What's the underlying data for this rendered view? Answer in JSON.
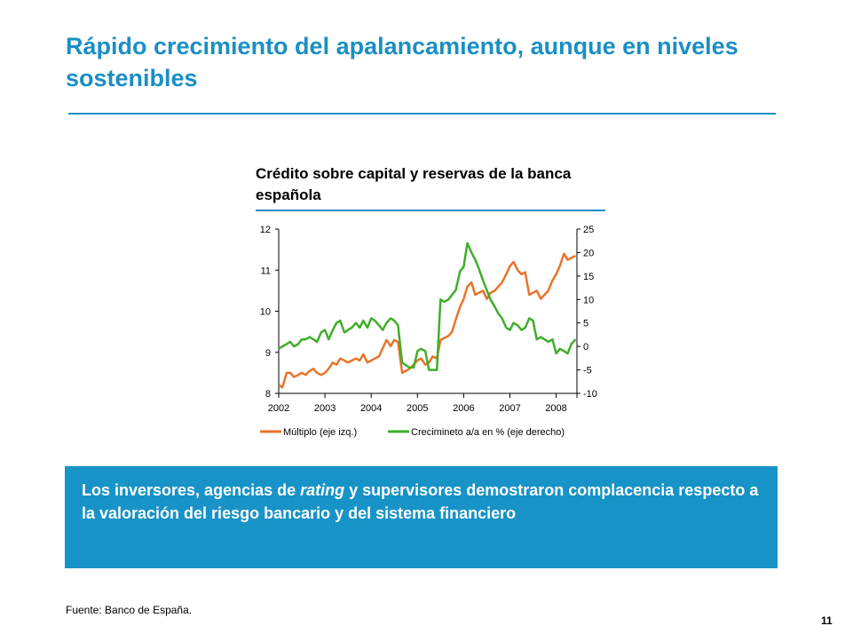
{
  "slide": {
    "title": "Rápido crecimiento del apalancamiento, aunque en niveles sostenibles",
    "callout": {
      "before": "Los inversores, agencias de ",
      "emphasis": "rating",
      "after": " y supervisores demostraron complacencia respecto a la valoración del riesgo bancario y del sistema financiero"
    },
    "source": "Fuente: Banco de España.",
    "page_number": "11"
  },
  "chart_data": {
    "type": "line",
    "title": "Crédito sobre capital y reservas de la banca española",
    "x_ticks": [
      "2002",
      "2003",
      "2004",
      "2005",
      "2006",
      "2007",
      "2008"
    ],
    "xlim": [
      2002,
      2008.45
    ],
    "y_left": {
      "ylim": [
        8,
        12
      ],
      "ticks": [
        "8",
        "9",
        "10",
        "11",
        "12"
      ]
    },
    "y_right": {
      "ylim": [
        -10,
        25
      ],
      "ticks": [
        "-10",
        "-5",
        "0",
        "5",
        "10",
        "15",
        "20",
        "25"
      ]
    },
    "grid": false,
    "legend_position": "bottom",
    "series": [
      {
        "name": "Múltiplo (eje izq.)",
        "axis": "left",
        "color": "#e8742a",
        "x": [
          2002.0,
          2002.08,
          2002.17,
          2002.25,
          2002.33,
          2002.42,
          2002.5,
          2002.58,
          2002.67,
          2002.75,
          2002.83,
          2002.92,
          2003.0,
          2003.08,
          2003.17,
          2003.25,
          2003.33,
          2003.42,
          2003.5,
          2003.58,
          2003.67,
          2003.75,
          2003.83,
          2003.92,
          2004.0,
          2004.08,
          2004.17,
          2004.25,
          2004.33,
          2004.42,
          2004.5,
          2004.58,
          2004.67,
          2004.75,
          2004.83,
          2004.92,
          2005.0,
          2005.08,
          2005.17,
          2005.25,
          2005.33,
          2005.42,
          2005.5,
          2005.58,
          2005.67,
          2005.75,
          2005.83,
          2005.92,
          2006.0,
          2006.08,
          2006.17,
          2006.25,
          2006.33,
          2006.42,
          2006.5,
          2006.58,
          2006.67,
          2006.75,
          2006.83,
          2006.92,
          2007.0,
          2007.08,
          2007.17,
          2007.25,
          2007.33,
          2007.42,
          2007.5,
          2007.58,
          2007.67,
          2007.75,
          2007.83,
          2007.92,
          2008.0,
          2008.08,
          2008.17,
          2008.25,
          2008.33,
          2008.42
        ],
        "values": [
          8.2,
          8.15,
          8.5,
          8.5,
          8.4,
          8.45,
          8.5,
          8.45,
          8.55,
          8.6,
          8.5,
          8.45,
          8.5,
          8.6,
          8.75,
          8.7,
          8.85,
          8.8,
          8.75,
          8.8,
          8.85,
          8.8,
          8.95,
          8.75,
          8.8,
          8.85,
          8.9,
          9.1,
          9.3,
          9.15,
          9.3,
          9.25,
          8.5,
          8.55,
          8.6,
          8.7,
          8.8,
          8.85,
          8.7,
          8.75,
          8.9,
          8.85,
          9.3,
          9.35,
          9.4,
          9.5,
          9.8,
          10.1,
          10.3,
          10.6,
          10.7,
          10.4,
          10.45,
          10.5,
          10.3,
          10.45,
          10.5,
          10.6,
          10.7,
          10.9,
          11.1,
          11.2,
          11.0,
          10.9,
          10.95,
          10.4,
          10.45,
          10.5,
          10.3,
          10.4,
          10.5,
          10.75,
          10.9,
          11.1,
          11.4,
          11.25,
          11.3,
          11.35
        ]
      },
      {
        "name": "Crecimineto a/a en % (eje derecho)",
        "axis": "right",
        "color": "#3fae2a",
        "x": [
          2002.0,
          2002.08,
          2002.17,
          2002.25,
          2002.33,
          2002.42,
          2002.5,
          2002.58,
          2002.67,
          2002.75,
          2002.83,
          2002.92,
          2003.0,
          2003.08,
          2003.17,
          2003.25,
          2003.33,
          2003.42,
          2003.5,
          2003.58,
          2003.67,
          2003.75,
          2003.83,
          2003.92,
          2004.0,
          2004.08,
          2004.17,
          2004.25,
          2004.33,
          2004.42,
          2004.5,
          2004.58,
          2004.67,
          2004.75,
          2004.83,
          2004.92,
          2005.0,
          2005.08,
          2005.17,
          2005.25,
          2005.33,
          2005.42,
          2005.5,
          2005.58,
          2005.67,
          2005.75,
          2005.83,
          2005.92,
          2006.0,
          2006.08,
          2006.17,
          2006.25,
          2006.33,
          2006.42,
          2006.5,
          2006.58,
          2006.67,
          2006.75,
          2006.83,
          2006.92,
          2007.0,
          2007.08,
          2007.17,
          2007.25,
          2007.33,
          2007.42,
          2007.5,
          2007.58,
          2007.67,
          2007.75,
          2007.83,
          2007.92,
          2008.0,
          2008.08,
          2008.17,
          2008.25,
          2008.33,
          2008.42
        ],
        "values": [
          -0.5,
          0.0,
          0.5,
          1.0,
          0.0,
          0.5,
          1.5,
          1.5,
          2.0,
          1.5,
          1.0,
          3.0,
          3.5,
          1.5,
          3.5,
          5.0,
          5.5,
          3.0,
          3.5,
          4.0,
          5.0,
          4.0,
          5.5,
          4.0,
          6.0,
          5.5,
          4.5,
          3.5,
          5.0,
          6.0,
          5.5,
          4.5,
          -3.5,
          -4.0,
          -4.5,
          -4.5,
          -1.0,
          -0.5,
          -1.0,
          -5.0,
          -5.0,
          -5.0,
          10.0,
          9.5,
          10.0,
          11.0,
          12.0,
          16.0,
          17.0,
          22.0,
          20.0,
          18.5,
          16.5,
          14.0,
          12.0,
          10.0,
          8.5,
          7.0,
          6.0,
          4.0,
          3.5,
          5.0,
          4.5,
          3.5,
          4.0,
          6.0,
          5.5,
          1.5,
          2.0,
          1.5,
          1.0,
          1.5,
          -1.5,
          -0.5,
          -1.0,
          -1.5,
          0.5,
          1.5
        ]
      }
    ]
  }
}
